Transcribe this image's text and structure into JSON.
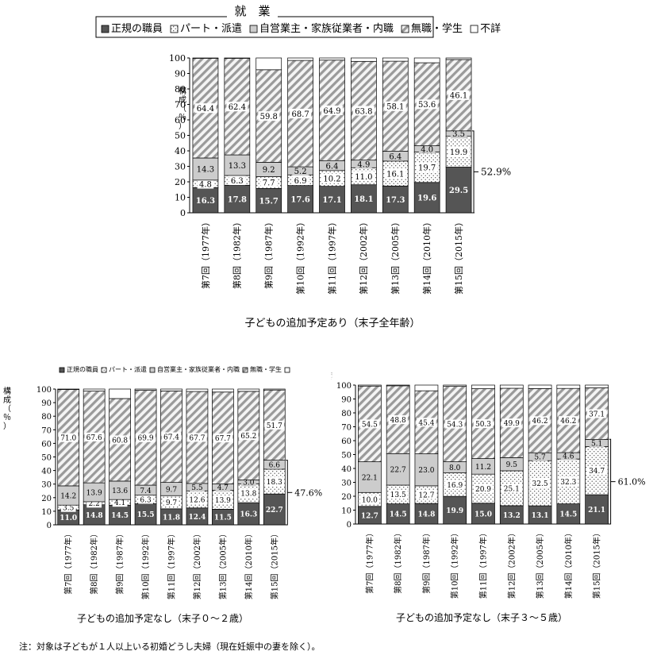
{
  "legend_main": {
    "title": "就　業",
    "items": [
      "正規の職員",
      "パート・派遣",
      "自営業主・家族従業者・内職",
      "無職・学生",
      "不詳"
    ]
  },
  "legend_small": {
    "items": [
      "正規の職員",
      "パート・派遣",
      "自営業主・家族従業者・内職",
      "無職・学生",
      ""
    ]
  },
  "note": "注：対象は子どもが１人以上いる初婚どうし夫婦（現在妊娠中の妻を除く）。",
  "ylabel": "構成（％）",
  "colors": {
    "regular": "#555555",
    "part": "#ffffff",
    "self": "#cccccc",
    "unemployed": "#f4f4f4",
    "hatch": "#9a9a9a",
    "unknown": "#ffffff"
  },
  "chart_data": [
    {
      "type": "bar",
      "stacked": true,
      "title": "子どもの追加予定あり（末子全年齢）",
      "categories": [
        "第7回（1977年）",
        "第8回（1982年）",
        "第9回（1987年）",
        "第10回（1992年）",
        "第11回（1997年）",
        "第12回（2002年）",
        "第13回（2005年）",
        "第14回（2010年）",
        "第15回（2015年）"
      ],
      "ylim": [
        0,
        100
      ],
      "yticks": [
        0,
        10,
        20,
        30,
        40,
        50,
        60,
        70,
        80,
        90,
        100
      ],
      "series": [
        {
          "name": "正規の職員",
          "values": [
            16.3,
            17.8,
            15.7,
            17.6,
            17.1,
            18.1,
            17.3,
            19.6,
            29.5
          ]
        },
        {
          "name": "パート・派遣",
          "values": [
            4.8,
            6.3,
            7.7,
            6.9,
            10.2,
            11.0,
            16.1,
            19.7,
            19.9
          ]
        },
        {
          "name": "自営業主・家族従業者・内職",
          "values": [
            14.3,
            13.3,
            9.2,
            5.2,
            6.4,
            4.9,
            6.4,
            4.0,
            3.5
          ]
        },
        {
          "name": "無職・学生",
          "values": [
            64.4,
            62.4,
            59.8,
            68.7,
            64.9,
            63.8,
            58.1,
            53.6,
            46.1
          ]
        },
        {
          "name": "不詳",
          "values": [
            0.2,
            0.2,
            7.6,
            1.6,
            1.4,
            2.2,
            2.1,
            3.1,
            1.0
          ]
        }
      ],
      "bracket": {
        "value": "52.9%",
        "from": 0,
        "to": 52.9
      }
    },
    {
      "type": "bar",
      "stacked": true,
      "title": "子どもの追加予定なし（末子０～２歳）",
      "categories": [
        "第7回（1977年）",
        "第8回（1982年）",
        "第9回（1987年）",
        "第10回（1992年）",
        "第11回（1997年）",
        "第12回（2002年）",
        "第13回（2005年）",
        "第14回（2010年）",
        "第15回（2015年）"
      ],
      "ylim": [
        0,
        100
      ],
      "yticks": [
        0,
        10,
        20,
        30,
        40,
        50,
        60,
        70,
        80,
        90,
        100
      ],
      "series": [
        {
          "name": "正規の職員",
          "values": [
            11.0,
            14.8,
            14.5,
            15.5,
            11.8,
            12.4,
            11.5,
            16.3,
            22.7
          ]
        },
        {
          "name": "パート・派遣",
          "values": [
            3.5,
            2.2,
            4.1,
            6.3,
            9.7,
            12.6,
            13.9,
            13.8,
            18.3
          ]
        },
        {
          "name": "自営業主・家族従業者・内職",
          "values": [
            14.2,
            13.9,
            13.6,
            7.4,
            9.7,
            5.5,
            4.7,
            3.0,
            6.6
          ]
        },
        {
          "name": "無職・学生",
          "values": [
            71.0,
            67.6,
            60.8,
            69.9,
            67.4,
            67.7,
            67.7,
            65.2,
            51.7
          ]
        },
        {
          "name": "不詳",
          "values": [
            0.3,
            1.5,
            7.0,
            0.9,
            1.4,
            1.8,
            2.2,
            1.7,
            0.7
          ]
        }
      ],
      "bracket": {
        "value": "47.6%",
        "from": 0,
        "to": 47.6
      }
    },
    {
      "type": "bar",
      "stacked": true,
      "title": "子どもの追加予定なし（末子３～５歳）",
      "categories": [
        "第7回（1977年）",
        "第8回（1982年）",
        "第9回（1987年）",
        "第10回（1992年）",
        "第11回（1997年）",
        "第12回（2002年）",
        "第13回（2005年）",
        "第14回（2010年）",
        "第15回（2015年）"
      ],
      "ylim": [
        0,
        100
      ],
      "yticks": [
        0,
        10,
        20,
        30,
        40,
        50,
        60,
        70,
        80,
        90,
        100
      ],
      "series": [
        {
          "name": "正規の職員",
          "values": [
            12.7,
            14.5,
            14.8,
            19.9,
            15.0,
            13.2,
            13.1,
            14.5,
            21.1
          ]
        },
        {
          "name": "パート・派遣",
          "values": [
            10.0,
            13.5,
            12.7,
            16.9,
            20.9,
            25.1,
            32.5,
            32.3,
            34.7
          ]
        },
        {
          "name": "自営業主・家族従業者・内職",
          "values": [
            22.1,
            22.7,
            23.0,
            8.0,
            11.2,
            9.5,
            5.7,
            4.6,
            5.1
          ]
        },
        {
          "name": "無職・学生",
          "values": [
            54.5,
            48.8,
            45.4,
            54.3,
            50.3,
            49.9,
            46.2,
            46.2,
            37.1
          ]
        },
        {
          "name": "不詳",
          "values": [
            0.7,
            0.5,
            4.1,
            0.9,
            2.6,
            2.3,
            2.5,
            2.4,
            2.0
          ]
        }
      ],
      "bracket": {
        "value": "61.0%",
        "from": 0,
        "to": 61.0
      }
    }
  ]
}
